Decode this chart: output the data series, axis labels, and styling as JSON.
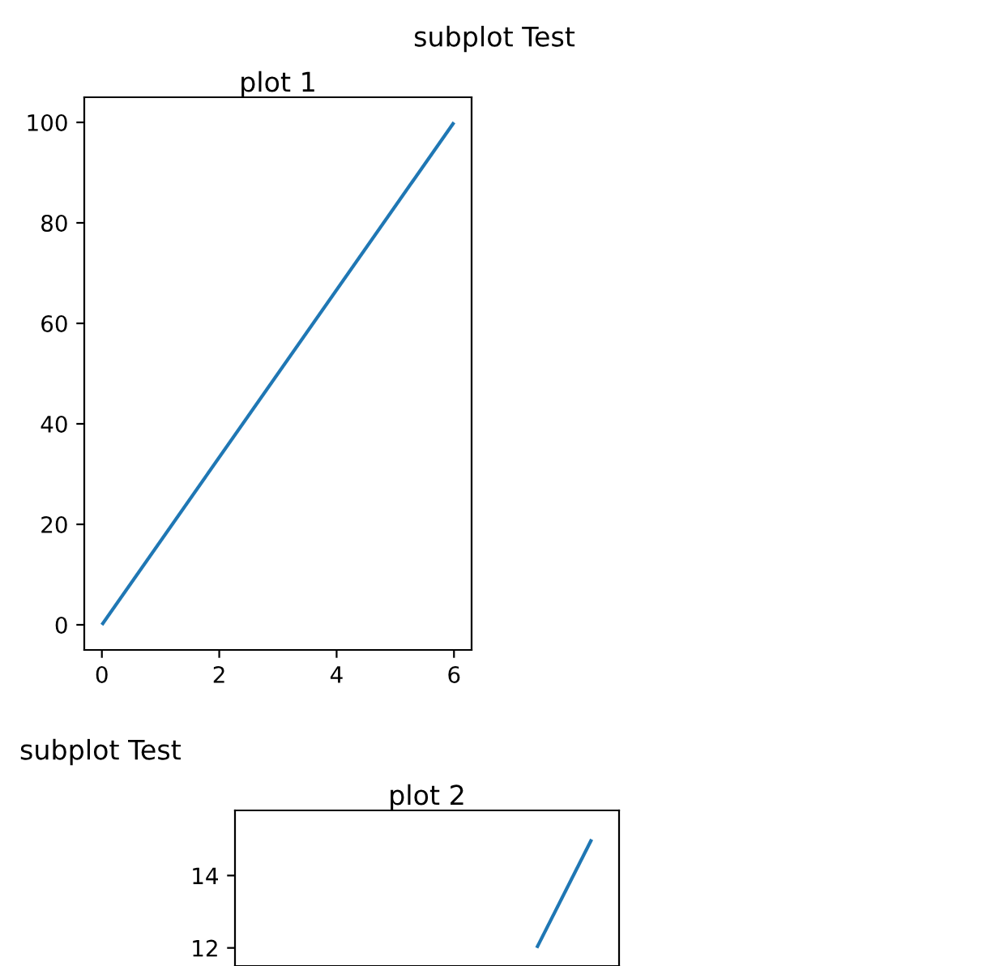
{
  "chart_data": [
    {
      "type": "line",
      "title": "subplot Test",
      "subtitle": "plot 1",
      "x": [
        0,
        6
      ],
      "series": [
        {
          "color": "#1f77b4",
          "values": [
            0,
            100
          ]
        }
      ],
      "xlim": [
        -0.3,
        6.3
      ],
      "xticks": [
        0,
        2,
        4,
        6
      ],
      "ylim": [
        -5,
        105
      ],
      "yticks": [
        0,
        20,
        40,
        60,
        80,
        100
      ],
      "grid": false,
      "legend": false
    },
    {
      "type": "line",
      "title": "subplot Test",
      "subtitle": "plot 2",
      "categories": [
        null,
        null,
        null,
        null,
        null,
        null,
        null
      ],
      "series": [
        {
          "color": "#1f77b4",
          "values": [
            null,
            null,
            null,
            null,
            null,
            12,
            15
          ]
        }
      ],
      "ylim": [
        11.5,
        15.8
      ],
      "yticks": [
        12,
        14
      ],
      "tick_labels": "y",
      "grid": false,
      "legend": false
    }
  ]
}
